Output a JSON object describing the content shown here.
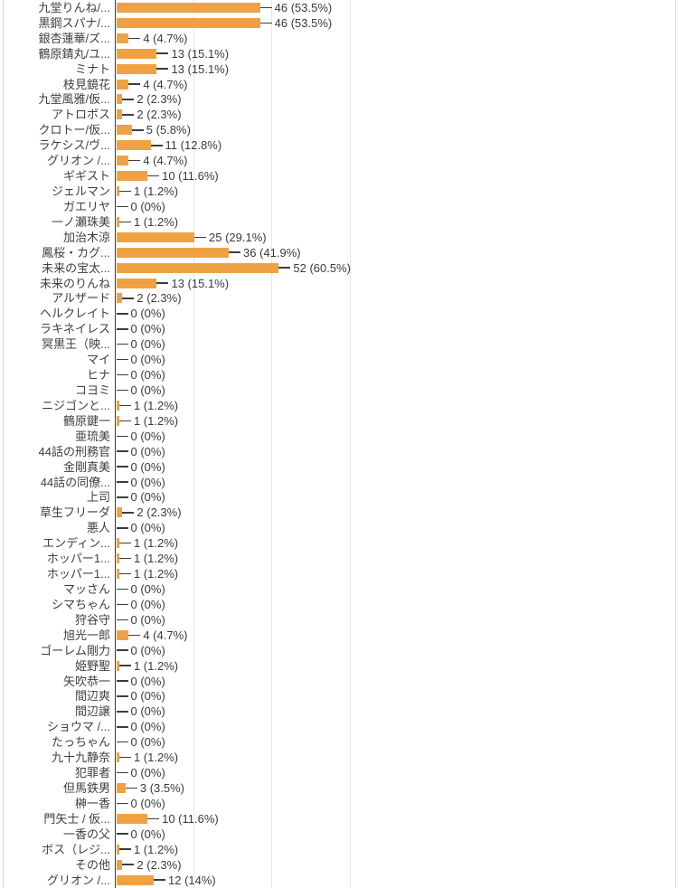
{
  "chart_data": {
    "type": "bar",
    "orientation": "horizontal",
    "title": "",
    "xlabel": "",
    "ylabel": "",
    "legend_position": "none",
    "grid": true,
    "gridline_values": [
      25,
      50,
      75
    ],
    "bar_color": "#F0A143",
    "axis_line_color": "#3A3A3A",
    "gridline_color": "#E6E6E6",
    "text_color": "#3F3F3F",
    "categories": [
      "九堂りんね/...",
      "黒鋼スパナ/...",
      "銀杏蓮華/ズ...",
      "鶴原錆丸/ユ...",
      "ミナト",
      "枝見鏡花",
      "九堂風雅/仮...",
      "アトロポス",
      "クロトー/仮...",
      "ラケシス/ヴ...",
      "グリオン /...",
      "ギギスト",
      "ジェルマン",
      "ガエリヤ",
      "一ノ瀬珠美",
      "加治木涼",
      "鳳桜・カグ...",
      "未来の宝太...",
      "未来のりんね",
      "アルザード",
      "ヘルクレイト",
      "ラキネイレス",
      "冥黒王（映...",
      "マイ",
      "ヒナ",
      "コヨミ",
      "ニジゴンと...",
      "鶴原鍵一",
      "亜琉美",
      "44話の刑務官",
      "金剛真美",
      "44話の同僚...",
      "上司",
      "草生フリーダ",
      "悪人",
      "エンディン...",
      "ホッパー1...",
      "ホッパー1...",
      "マッさん",
      "シマちゃん",
      "狩谷守",
      "旭光一郎",
      "ゴーレム剛力",
      "姫野聖",
      "矢吹恭一",
      "間辺爽",
      "間辺譲",
      "ショウマ /...",
      "たっちゃん",
      "九十九静奈",
      "犯罪者",
      "但馬鉄男",
      "榊一香",
      "門矢士 / 仮...",
      "一香の父",
      "ボス（レジ...",
      "その他",
      "グリオン /..."
    ],
    "values": [
      46,
      46,
      4,
      13,
      13,
      4,
      2,
      2,
      5,
      11,
      4,
      10,
      1,
      0,
      1,
      25,
      36,
      52,
      13,
      2,
      0,
      0,
      0,
      0,
      0,
      0,
      1,
      1,
      0,
      0,
      0,
      0,
      0,
      2,
      0,
      1,
      1,
      1,
      0,
      0,
      0,
      4,
      0,
      1,
      0,
      0,
      0,
      0,
      0,
      1,
      0,
      3,
      0,
      10,
      0,
      1,
      2,
      12
    ],
    "annotations": [
      "46 (53.5%)",
      "46 (53.5%)",
      "4 (4.7%)",
      "13 (15.1%)",
      "13 (15.1%)",
      "4 (4.7%)",
      "2 (2.3%)",
      "2 (2.3%)",
      "5 (5.8%)",
      "11 (12.8%)",
      "4 (4.7%)",
      "10 (11.6%)",
      "1 (1.2%)",
      "0 (0%)",
      "1 (1.2%)",
      "25 (29.1%)",
      "36 (41.9%)",
      "52 (60.5%)",
      "13 (15.1%)",
      "2 (2.3%)",
      "0 (0%)",
      "0 (0%)",
      "0 (0%)",
      "0 (0%)",
      "0 (0%)",
      "0 (0%)",
      "1 (1.2%)",
      "1 (1.2%)",
      "0 (0%)",
      "0 (0%)",
      "0 (0%)",
      "0 (0%)",
      "0 (0%)",
      "2 (2.3%)",
      "0 (0%)",
      "1 (1.2%)",
      "1 (1.2%)",
      "1 (1.2%)",
      "0 (0%)",
      "0 (0%)",
      "0 (0%)",
      "4 (4.7%)",
      "0 (0%)",
      "1 (1.2%)",
      "0 (0%)",
      "0 (0%)",
      "0 (0%)",
      "0 (0%)",
      "0 (0%)",
      "1 (1.2%)",
      "0 (0%)",
      "3 (3.5%)",
      "0 (0%)",
      "10 (11.6%)",
      "0 (0%)",
      "1 (1.2%)",
      "2 (2.3%)",
      "12 (14%)"
    ]
  }
}
